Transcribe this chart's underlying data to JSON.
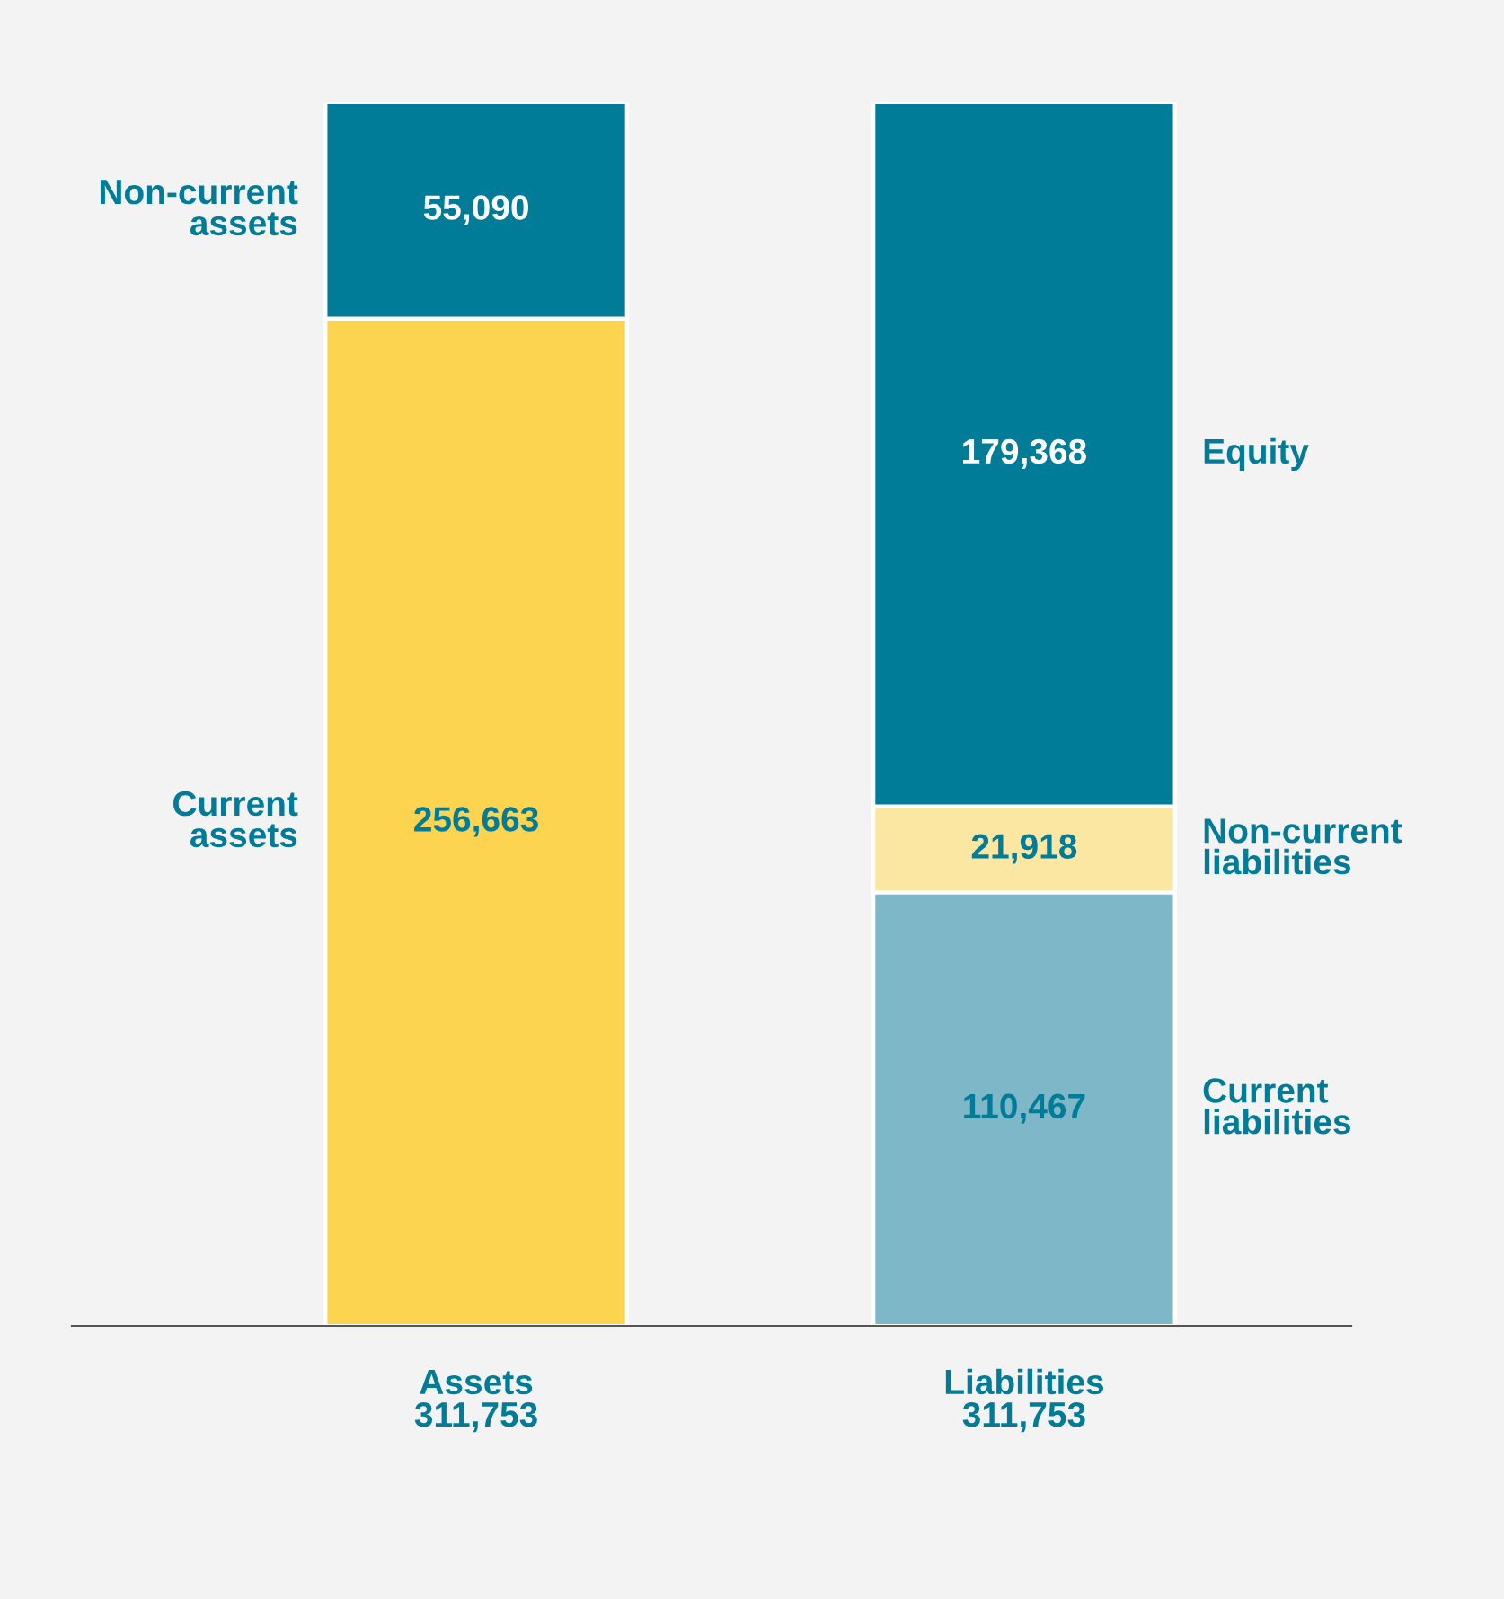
{
  "chart_data": {
    "type": "bar",
    "stacked": true,
    "categories": [
      "Assets",
      "Liabilities"
    ],
    "totals": [
      "311,753",
      "311,753"
    ],
    "series": [
      {
        "name": "Current assets",
        "color": "#fdd44f",
        "values": [
          256663,
          null
        ],
        "value_labels": [
          "256,663",
          null
        ]
      },
      {
        "name": "Non-current assets",
        "color": "#007c98",
        "values": [
          55090,
          null
        ],
        "value_labels": [
          "55,090",
          null
        ]
      },
      {
        "name": "Current liabilities",
        "color": "#7eb8c8",
        "values": [
          null,
          110467
        ],
        "value_labels": [
          null,
          "110,467"
        ]
      },
      {
        "name": "Non-current liabilities",
        "color": "#fbe6a2",
        "values": [
          null,
          21918
        ],
        "value_labels": [
          null,
          "21,918"
        ]
      },
      {
        "name": "Equity",
        "color": "#007c98",
        "values": [
          null,
          179368
        ],
        "value_labels": [
          null,
          "179,368"
        ]
      }
    ],
    "legend": false
  }
}
